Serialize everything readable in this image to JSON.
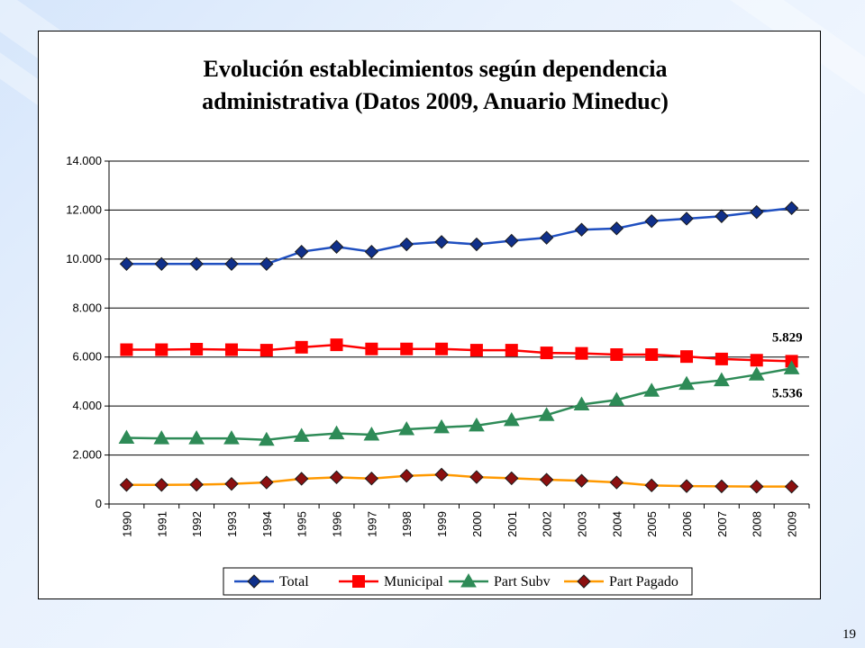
{
  "page": {
    "number": "19"
  },
  "chart_data": {
    "type": "line",
    "title_lines": [
      "Evolución establecimientos según dependencia",
      "administrativa (Datos 2009, Anuario Mineduc)"
    ],
    "categories": [
      "1990",
      "1991",
      "1992",
      "1993",
      "1994",
      "1995",
      "1996",
      "1997",
      "1998",
      "1999",
      "2000",
      "2001",
      "2002",
      "2003",
      "2004",
      "2005",
      "2006",
      "2007",
      "2008",
      "2009"
    ],
    "ylim": [
      0,
      14000
    ],
    "yticks": [
      0,
      2000,
      4000,
      6000,
      8000,
      10000,
      12000,
      14000
    ],
    "ytick_labels": [
      "0",
      "2.000",
      "4.000",
      "6.000",
      "8.000",
      "10.000",
      "12.000",
      "14.000"
    ],
    "grid": "horizontal",
    "legend_position": "bottom",
    "series": [
      {
        "name": "Total",
        "color": "#1f4fc0",
        "marker": "diamond",
        "marker_color": "#10308a",
        "values": [
          9800,
          9800,
          9800,
          9800,
          9800,
          10300,
          10500,
          10300,
          10600,
          10700,
          10600,
          10750,
          10870,
          11200,
          11250,
          11550,
          11650,
          11750,
          11920,
          12080
        ]
      },
      {
        "name": "Municipal",
        "color": "#ff0000",
        "marker": "square",
        "marker_color": "#ff0000",
        "values": [
          6300,
          6300,
          6320,
          6300,
          6280,
          6400,
          6500,
          6330,
          6330,
          6330,
          6280,
          6280,
          6170,
          6150,
          6100,
          6100,
          6020,
          5920,
          5870,
          5829
        ]
      },
      {
        "name": "Part Subv",
        "color": "#2e8b57",
        "marker": "triangle",
        "marker_color": "#2e8b57",
        "values": [
          2700,
          2680,
          2680,
          2680,
          2620,
          2780,
          2880,
          2830,
          3050,
          3130,
          3200,
          3420,
          3630,
          4060,
          4250,
          4620,
          4900,
          5050,
          5280,
          5536
        ]
      },
      {
        "name": "Part Pagado",
        "color": "#ff9900",
        "marker": "diamond",
        "marker_color": "#8b1010",
        "values": [
          780,
          780,
          790,
          820,
          880,
          1030,
          1090,
          1040,
          1150,
          1200,
          1100,
          1050,
          990,
          950,
          880,
          760,
          730,
          720,
          710,
          710
        ]
      }
    ],
    "annotations": [
      {
        "text": "5.829",
        "series": "Municipal"
      },
      {
        "text": "5.536",
        "series": "Part Subv"
      }
    ]
  }
}
